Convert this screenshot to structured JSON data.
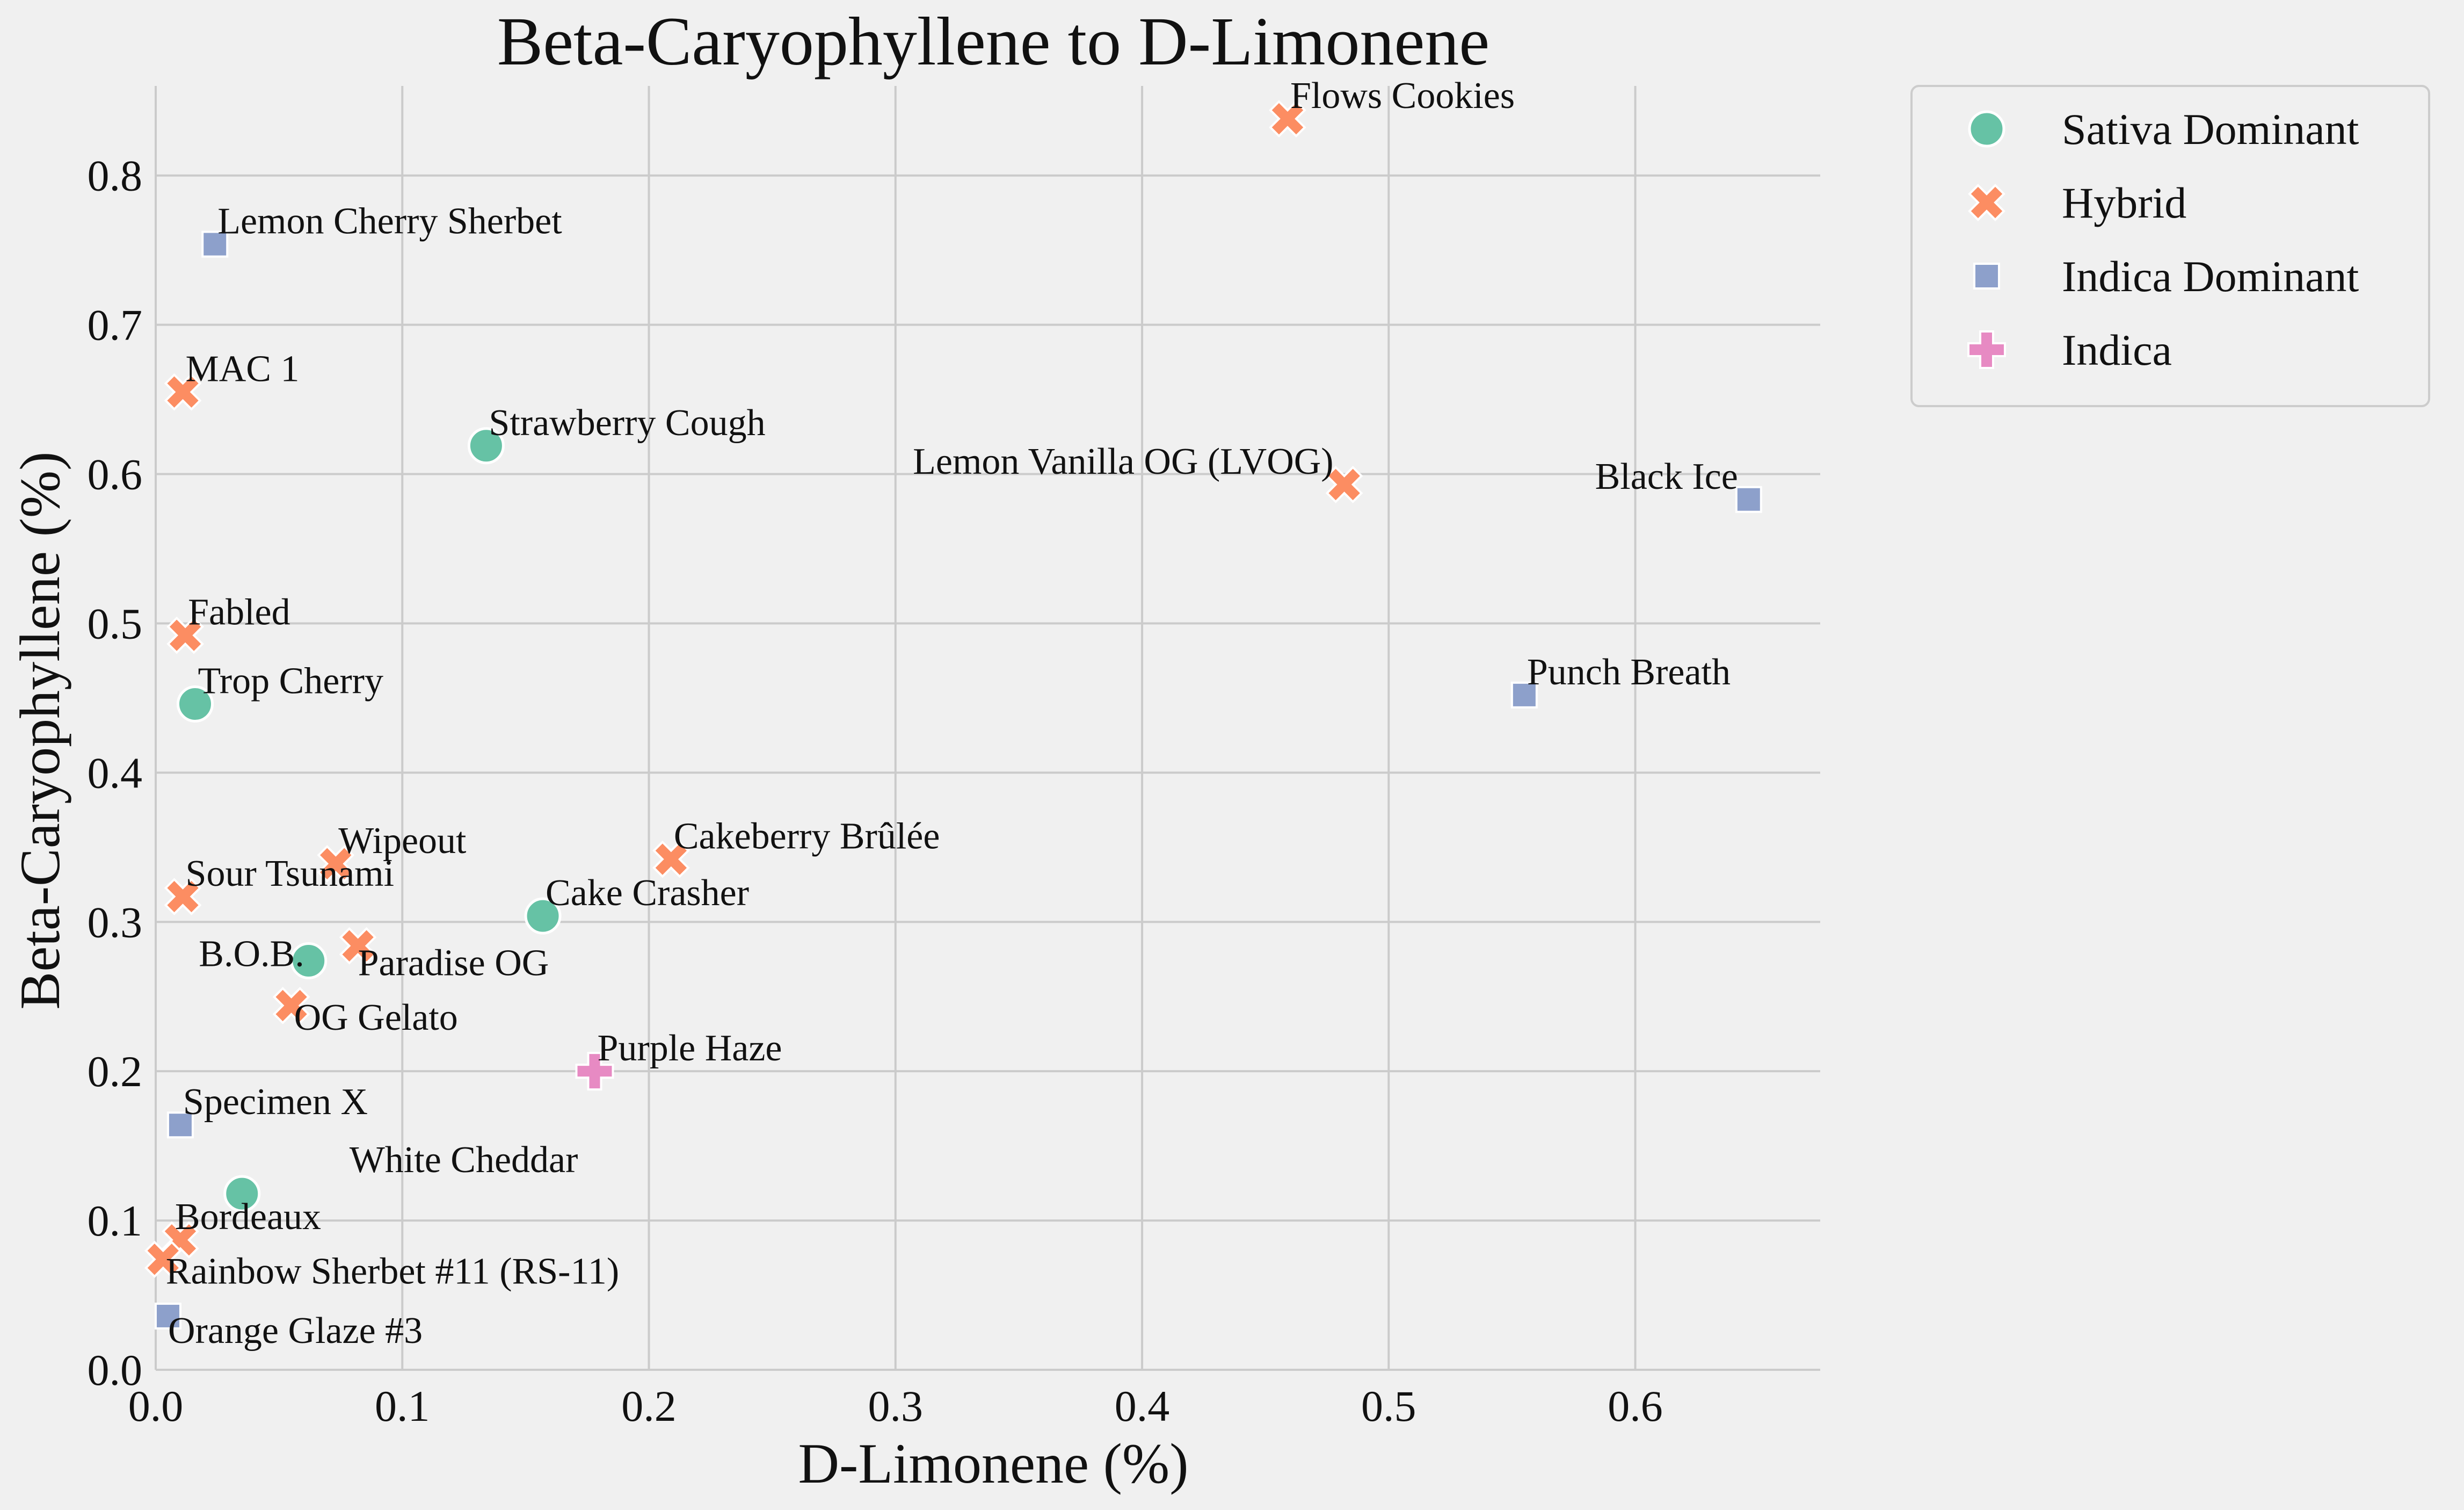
{
  "chart_data": {
    "type": "scatter",
    "title": "Beta-Caryophyllene to D-Limonene",
    "xlabel": "D-Limonene (%)",
    "ylabel": "Beta-Caryophyllene (%)",
    "xlim": [
      0.0,
      0.675
    ],
    "ylim": [
      0.0,
      0.86
    ],
    "xticks": [
      "0.0",
      "0.1",
      "0.2",
      "0.3",
      "0.4",
      "0.5",
      "0.6"
    ],
    "yticks": [
      "0.0",
      "0.1",
      "0.2",
      "0.3",
      "0.4",
      "0.5",
      "0.6",
      "0.7",
      "0.8"
    ],
    "grid": true,
    "legend_position": "outside-top-right",
    "series": [
      {
        "name": "Sativa Dominant",
        "marker": "circle",
        "color": "#66c2a5",
        "points": [
          {
            "label": "Strawberry Cough",
            "x": 0.134,
            "y": 0.619
          },
          {
            "label": "Trop Cherry",
            "x": 0.016,
            "y": 0.446
          },
          {
            "label": "Cake Crasher",
            "x": 0.157,
            "y": 0.304
          },
          {
            "label": "B.O.B.",
            "x": 0.062,
            "y": 0.274
          },
          {
            "label": "White Cheddar",
            "x": 0.035,
            "y": 0.118
          }
        ]
      },
      {
        "name": "Hybrid",
        "marker": "x",
        "color": "#fc8d62",
        "points": [
          {
            "label": "Flows Cookies",
            "x": 0.459,
            "y": 0.838
          },
          {
            "label": "MAC 1",
            "x": 0.011,
            "y": 0.655
          },
          {
            "label": "Lemon Vanilla OG (LVOG)",
            "x": 0.482,
            "y": 0.593
          },
          {
            "label": "Fabled",
            "x": 0.012,
            "y": 0.492
          },
          {
            "label": "Cakeberry Brûlée",
            "x": 0.209,
            "y": 0.342
          },
          {
            "label": "Wipeout",
            "x": 0.073,
            "y": 0.339
          },
          {
            "label": "Sour Tsunami",
            "x": 0.011,
            "y": 0.317
          },
          {
            "label": "Paradise OG",
            "x": 0.082,
            "y": 0.284
          },
          {
            "label": "OG Gelato",
            "x": 0.055,
            "y": 0.244
          },
          {
            "label": "Bordeaux",
            "x": 0.01,
            "y": 0.087
          },
          {
            "label": "Rainbow Sherbet #11 (RS-11)",
            "x": 0.003,
            "y": 0.074
          }
        ]
      },
      {
        "name": "Indica Dominant",
        "marker": "square",
        "color": "#8da0cb",
        "points": [
          {
            "label": "Lemon Cherry Sherbet",
            "x": 0.024,
            "y": 0.754
          },
          {
            "label": "Black Ice",
            "x": 0.646,
            "y": 0.583
          },
          {
            "label": "Punch Breath",
            "x": 0.555,
            "y": 0.452
          },
          {
            "label": "Specimen X",
            "x": 0.01,
            "y": 0.164
          },
          {
            "label": "Orange Glaze #3",
            "x": 0.005,
            "y": 0.036
          }
        ]
      },
      {
        "name": "Indica",
        "marker": "plus",
        "color": "#e78ac3",
        "points": [
          {
            "label": "Purple Haze",
            "x": 0.178,
            "y": 0.2
          }
        ]
      }
    ]
  }
}
